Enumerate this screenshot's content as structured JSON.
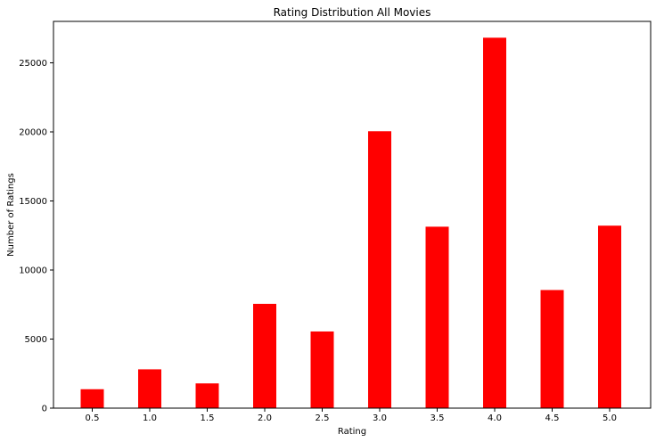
{
  "chart_data": {
    "type": "bar",
    "title": "Rating Distribution All Movies",
    "xlabel": "Rating",
    "ylabel": "Number of Ratings",
    "categories": [
      "0.5",
      "1.0",
      "1.5",
      "2.0",
      "2.5",
      "3.0",
      "3.5",
      "4.0",
      "4.5",
      "5.0"
    ],
    "values": [
      1370,
      2811,
      1791,
      7551,
      5550,
      20047,
      13136,
      26818,
      8551,
      13211
    ],
    "ylim": [
      0,
      28000
    ],
    "yticks": [
      0,
      5000,
      10000,
      15000,
      20000,
      25000
    ],
    "ytick_labels": [
      "0",
      "5000",
      "10000",
      "15000",
      "20000",
      "25000"
    ],
    "grid": false,
    "bar_color": "#ff0000"
  }
}
